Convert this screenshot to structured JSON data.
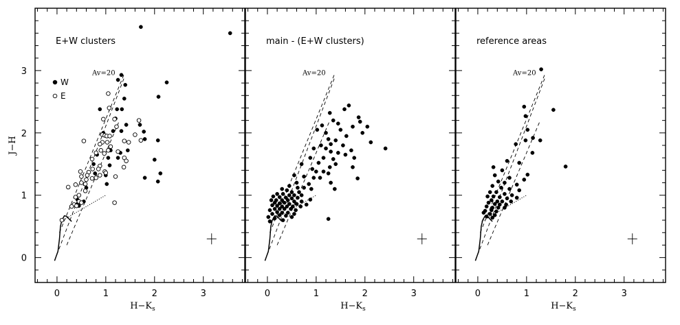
{
  "chart_data": [
    {
      "type": "scatter",
      "title": "E+W clusters",
      "xlabel": "H−K",
      "xlabel_sub": "s",
      "ylabel": "J−H",
      "xlim": [
        -0.45,
        3.85
      ],
      "ylim": [
        -0.4,
        4.0
      ],
      "xticks": [
        "0",
        "1",
        "2",
        "3"
      ],
      "yticks": [
        "0",
        "1",
        "2",
        "3"
      ],
      "reddening_label": "Av=20",
      "legend": {
        "position": "upper-left",
        "entries": [
          {
            "label": "W",
            "marker": "filled"
          },
          {
            "label": "E",
            "marker": "open"
          }
        ]
      },
      "series": [
        {
          "name": "W",
          "marker": "filled",
          "points": [
            [
              1.72,
              3.7
            ],
            [
              3.55,
              3.6
            ],
            [
              1.32,
              2.93
            ],
            [
              1.25,
              2.85
            ],
            [
              2.25,
              2.81
            ],
            [
              1.4,
              2.77
            ],
            [
              1.38,
              2.55
            ],
            [
              2.08,
              2.58
            ],
            [
              0.88,
              2.38
            ],
            [
              1.23,
              2.38
            ],
            [
              1.33,
              2.38
            ],
            [
              1.2,
              2.23
            ],
            [
              1.42,
              2.13
            ],
            [
              1.7,
              2.13
            ],
            [
              1.15,
              2.03
            ],
            [
              1.32,
              2.03
            ],
            [
              0.95,
              2.0
            ],
            [
              1.78,
              2.02
            ],
            [
              1.8,
              1.9
            ],
            [
              2.07,
              1.88
            ],
            [
              0.82,
              1.65
            ],
            [
              1.1,
              1.72
            ],
            [
              1.3,
              1.68
            ],
            [
              1.45,
              1.72
            ],
            [
              1.05,
              1.6
            ],
            [
              1.25,
              1.6
            ],
            [
              0.75,
              1.5
            ],
            [
              1.08,
              1.48
            ],
            [
              2.0,
              1.57
            ],
            [
              0.78,
              1.35
            ],
            [
              1.0,
              1.32
            ],
            [
              1.02,
              1.18
            ],
            [
              1.8,
              1.28
            ],
            [
              2.12,
              1.35
            ],
            [
              2.07,
              1.22
            ],
            [
              0.6,
              1.12
            ],
            [
              0.42,
              0.93
            ],
            [
              0.48,
              0.88
            ],
            [
              0.55,
              0.9
            ],
            [
              0.4,
              0.85
            ],
            [
              0.45,
              0.83
            ]
          ]
        },
        {
          "name": "E",
          "marker": "open",
          "points": [
            [
              1.05,
              2.63
            ],
            [
              1.07,
              2.4
            ],
            [
              0.95,
              2.22
            ],
            [
              1.18,
              2.22
            ],
            [
              1.68,
              2.2
            ],
            [
              1.22,
              2.1
            ],
            [
              0.93,
              1.97
            ],
            [
              0.98,
              1.96
            ],
            [
              1.02,
              1.95
            ],
            [
              1.08,
              1.95
            ],
            [
              1.6,
              1.97
            ],
            [
              1.38,
              1.87
            ],
            [
              1.47,
              1.85
            ],
            [
              0.55,
              1.87
            ],
            [
              0.93,
              1.85
            ],
            [
              1.03,
              1.85
            ],
            [
              0.88,
              1.82
            ],
            [
              1.72,
              1.88
            ],
            [
              1.1,
              1.78
            ],
            [
              0.9,
              1.72
            ],
            [
              1.05,
              1.72
            ],
            [
              1.25,
              1.7
            ],
            [
              0.8,
              1.68
            ],
            [
              0.97,
              1.67
            ],
            [
              1.38,
              1.6
            ],
            [
              0.72,
              1.58
            ],
            [
              1.42,
              1.55
            ],
            [
              0.88,
              1.47
            ],
            [
              0.73,
              1.42
            ],
            [
              0.85,
              1.42
            ],
            [
              0.65,
              1.37
            ],
            [
              0.98,
              1.38
            ],
            [
              1.0,
              1.36
            ],
            [
              1.37,
              1.45
            ],
            [
              0.48,
              1.38
            ],
            [
              0.62,
              1.32
            ],
            [
              0.88,
              1.32
            ],
            [
              0.5,
              1.3
            ],
            [
              0.72,
              1.27
            ],
            [
              0.6,
              1.25
            ],
            [
              0.8,
              1.28
            ],
            [
              1.2,
              1.3
            ],
            [
              0.5,
              1.2
            ],
            [
              0.58,
              1.18
            ],
            [
              0.38,
              1.17
            ],
            [
              0.23,
              1.13
            ],
            [
              0.58,
              1.07
            ],
            [
              0.45,
              1.0
            ],
            [
              0.38,
              0.97
            ],
            [
              0.45,
              0.9
            ],
            [
              0.5,
              0.88
            ],
            [
              0.35,
              0.85
            ],
            [
              0.4,
              0.83
            ],
            [
              0.3,
              0.82
            ],
            [
              1.18,
              0.88
            ],
            [
              0.1,
              0.6
            ]
          ]
        }
      ]
    },
    {
      "type": "scatter",
      "title": "main - (E+W clusters)",
      "xlabel": "H−K",
      "xlabel_sub": "s",
      "xlim": [
        -0.45,
        3.85
      ],
      "ylim": [
        -0.4,
        4.0
      ],
      "xticks": [
        "0",
        "1",
        "2",
        "3"
      ],
      "reddening_label": "Av=20",
      "series": [
        {
          "marker": "filled",
          "points": [
            [
              1.67,
              2.44
            ],
            [
              1.58,
              2.38
            ],
            [
              1.28,
              2.32
            ],
            [
              1.87,
              2.25
            ],
            [
              1.12,
              2.12
            ],
            [
              1.02,
              2.05
            ],
            [
              1.35,
              2.2
            ],
            [
              1.9,
              2.18
            ],
            [
              1.45,
              2.15
            ],
            [
              1.75,
              2.1
            ],
            [
              2.05,
              2.1
            ],
            [
              1.2,
              2.0
            ],
            [
              1.5,
              2.05
            ],
            [
              1.95,
              2.0
            ],
            [
              1.62,
              1.95
            ],
            [
              1.25,
              1.9
            ],
            [
              1.4,
              1.88
            ],
            [
              2.12,
              1.85
            ],
            [
              1.3,
              1.82
            ],
            [
              1.55,
              1.8
            ],
            [
              1.1,
              1.8
            ],
            [
              0.95,
              1.75
            ],
            [
              1.2,
              1.75
            ],
            [
              1.72,
              1.72
            ],
            [
              2.42,
              1.75
            ],
            [
              1.3,
              1.7
            ],
            [
              1.45,
              1.68
            ],
            [
              1.6,
              1.65
            ],
            [
              0.88,
              1.6
            ],
            [
              1.15,
              1.6
            ],
            [
              1.35,
              1.58
            ],
            [
              1.78,
              1.6
            ],
            [
              1.05,
              1.52
            ],
            [
              1.4,
              1.5
            ],
            [
              0.7,
              1.5
            ],
            [
              1.28,
              1.45
            ],
            [
              1.75,
              1.45
            ],
            [
              0.92,
              1.42
            ],
            [
              1.0,
              1.38
            ],
            [
              1.15,
              1.38
            ],
            [
              1.25,
              1.35
            ],
            [
              0.55,
              1.32
            ],
            [
              0.75,
              1.3
            ],
            [
              0.95,
              1.28
            ],
            [
              1.08,
              1.28
            ],
            [
              1.85,
              1.27
            ],
            [
              0.6,
              1.2
            ],
            [
              0.85,
              1.18
            ],
            [
              1.3,
              1.2
            ],
            [
              0.45,
              1.15
            ],
            [
              0.62,
              1.12
            ],
            [
              0.75,
              1.12
            ],
            [
              0.9,
              1.1
            ],
            [
              1.38,
              1.1
            ],
            [
              0.3,
              1.1
            ],
            [
              0.4,
              1.08
            ],
            [
              0.5,
              1.05
            ],
            [
              0.65,
              1.05
            ],
            [
              0.2,
              1.02
            ],
            [
              0.32,
              1.02
            ],
            [
              0.45,
              1.0
            ],
            [
              0.55,
              1.0
            ],
            [
              0.7,
              1.0
            ],
            [
              0.12,
              0.98
            ],
            [
              0.25,
              0.97
            ],
            [
              0.38,
              0.96
            ],
            [
              0.5,
              0.95
            ],
            [
              0.62,
              0.96
            ],
            [
              0.08,
              0.92
            ],
            [
              0.18,
              0.92
            ],
            [
              0.3,
              0.92
            ],
            [
              0.42,
              0.92
            ],
            [
              0.55,
              0.9
            ],
            [
              0.7,
              0.9
            ],
            [
              0.88,
              0.93
            ],
            [
              0.15,
              0.88
            ],
            [
              0.25,
              0.87
            ],
            [
              0.35,
              0.88
            ],
            [
              0.45,
              0.86
            ],
            [
              0.6,
              0.86
            ],
            [
              0.1,
              0.84
            ],
            [
              0.2,
              0.83
            ],
            [
              0.3,
              0.82
            ],
            [
              0.4,
              0.82
            ],
            [
              0.52,
              0.82
            ],
            [
              0.68,
              0.82
            ],
            [
              0.8,
              0.85
            ],
            [
              0.15,
              0.78
            ],
            [
              0.25,
              0.78
            ],
            [
              0.35,
              0.78
            ],
            [
              0.48,
              0.78
            ],
            [
              0.58,
              0.76
            ],
            [
              0.05,
              0.76
            ],
            [
              0.2,
              0.73
            ],
            [
              0.3,
              0.72
            ],
            [
              0.42,
              0.72
            ],
            [
              0.55,
              0.7
            ],
            [
              0.1,
              0.7
            ],
            [
              0.25,
              0.68
            ],
            [
              0.38,
              0.67
            ],
            [
              0.02,
              0.65
            ],
            [
              0.5,
              0.65
            ],
            [
              0.15,
              0.63
            ],
            [
              1.25,
              0.62
            ],
            [
              0.32,
              0.6
            ],
            [
              0.05,
              0.58
            ]
          ]
        }
      ]
    },
    {
      "type": "scatter",
      "title": "reference areas",
      "xlabel": "H−K",
      "xlabel_sub": "s",
      "xlim": [
        -0.45,
        3.85
      ],
      "ylim": [
        -0.4,
        4.0
      ],
      "xticks": [
        "0",
        "1",
        "2",
        "3"
      ],
      "reddening_label": "Av=20",
      "series": [
        {
          "marker": "filled",
          "points": [
            [
              1.3,
              3.02
            ],
            [
              0.95,
              2.42
            ],
            [
              1.55,
              2.37
            ],
            [
              0.98,
              2.27
            ],
            [
              1.02,
              2.05
            ],
            [
              1.13,
              1.92
            ],
            [
              0.98,
              1.88
            ],
            [
              1.28,
              1.88
            ],
            [
              0.78,
              1.82
            ],
            [
              1.12,
              1.68
            ],
            [
              0.85,
              1.52
            ],
            [
              0.6,
              1.55
            ],
            [
              1.8,
              1.46
            ],
            [
              0.32,
              1.45
            ],
            [
              0.5,
              1.4
            ],
            [
              0.35,
              1.32
            ],
            [
              1.02,
              1.33
            ],
            [
              0.65,
              1.28
            ],
            [
              0.95,
              1.25
            ],
            [
              0.42,
              1.22
            ],
            [
              0.55,
              1.2
            ],
            [
              0.8,
              1.17
            ],
            [
              0.3,
              1.15
            ],
            [
              0.48,
              1.12
            ],
            [
              0.65,
              1.1
            ],
            [
              0.85,
              1.08
            ],
            [
              0.25,
              1.05
            ],
            [
              0.38,
              1.05
            ],
            [
              0.55,
              1.02
            ],
            [
              0.7,
              1.0
            ],
            [
              0.2,
              0.98
            ],
            [
              0.32,
              0.98
            ],
            [
              0.45,
              0.97
            ],
            [
              0.6,
              0.95
            ],
            [
              0.8,
              0.96
            ],
            [
              0.28,
              0.92
            ],
            [
              0.4,
              0.9
            ],
            [
              0.5,
              0.9
            ],
            [
              0.68,
              0.9
            ],
            [
              0.22,
              0.88
            ],
            [
              0.35,
              0.86
            ],
            [
              0.45,
              0.85
            ],
            [
              0.58,
              0.85
            ],
            [
              0.18,
              0.82
            ],
            [
              0.3,
              0.8
            ],
            [
              0.42,
              0.8
            ],
            [
              0.55,
              0.8
            ],
            [
              0.28,
              0.76
            ],
            [
              0.15,
              0.75
            ],
            [
              0.38,
              0.74
            ],
            [
              0.12,
              0.72
            ],
            [
              0.25,
              0.7
            ],
            [
              0.35,
              0.68
            ],
            [
              0.18,
              0.66
            ],
            [
              0.3,
              0.64
            ]
          ]
        }
      ]
    }
  ]
}
